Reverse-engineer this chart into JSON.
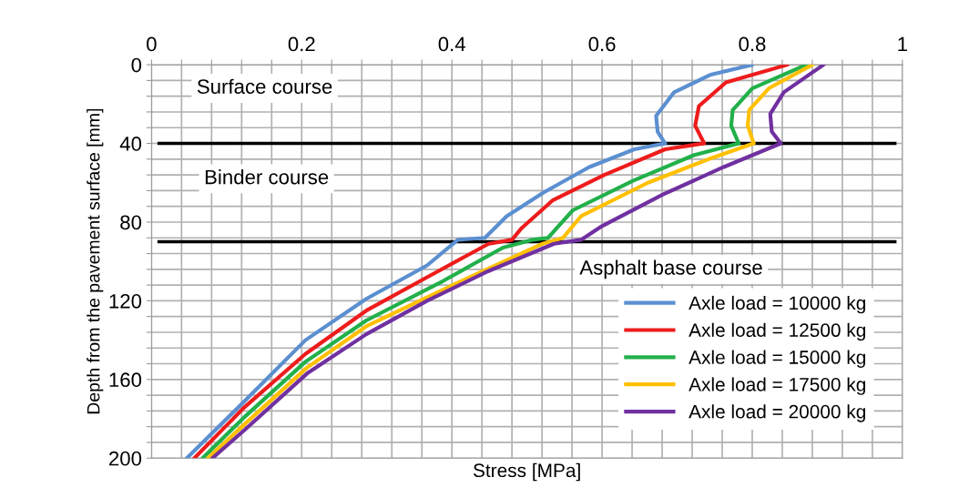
{
  "chart_data": {
    "type": "line",
    "xlabel": "Stress [MPa]",
    "ylabel": "Depth from the pavement surface [mm]",
    "xlim": [
      0,
      1
    ],
    "ylim": [
      200,
      0
    ],
    "xticks": [
      0,
      {
        "value": 0.04,
        "label": null
      },
      {
        "value": 0.08,
        "label": null
      },
      {
        "value": 0.12,
        "label": null
      },
      {
        "value": 0.16,
        "label": null
      },
      0.2,
      {
        "value": 0.24,
        "label": null
      },
      {
        "value": 0.28,
        "label": null
      },
      {
        "value": 0.32,
        "label": null
      },
      {
        "value": 0.36,
        "label": null
      },
      0.4,
      {
        "value": 0.44,
        "label": null
      },
      {
        "value": 0.48,
        "label": null
      },
      {
        "value": 0.52,
        "label": null
      },
      {
        "value": 0.56,
        "label": null
      },
      0.6,
      {
        "value": 0.64,
        "label": null
      },
      {
        "value": 0.68,
        "label": null
      },
      {
        "value": 0.72,
        "label": null
      },
      {
        "value": 0.76,
        "label": null
      },
      0.8,
      {
        "value": 0.84,
        "label": null
      },
      {
        "value": 0.88,
        "label": null
      },
      {
        "value": 0.92,
        "label": null
      },
      {
        "value": 0.96,
        "label": null
      },
      1
    ],
    "yticks": [
      0,
      {
        "value": 8,
        "label": null
      },
      {
        "value": 16,
        "label": null
      },
      {
        "value": 24,
        "label": null
      },
      {
        "value": 32,
        "label": null
      },
      40,
      {
        "value": 48,
        "label": null
      },
      {
        "value": 56,
        "label": null
      },
      {
        "value": 64,
        "label": null
      },
      {
        "value": 72,
        "label": null
      },
      80,
      {
        "value": 88,
        "label": null
      },
      {
        "value": 96,
        "label": null
      },
      {
        "value": 104,
        "label": null
      },
      {
        "value": 112,
        "label": null
      },
      120,
      {
        "value": 128,
        "label": null
      },
      {
        "value": 136,
        "label": null
      },
      {
        "value": 144,
        "label": null
      },
      {
        "value": 152,
        "label": null
      },
      160,
      {
        "value": 168,
        "label": null
      },
      {
        "value": 176,
        "label": null
      },
      {
        "value": 184,
        "label": null
      },
      {
        "value": 192,
        "label": null
      },
      200
    ],
    "grid": true,
    "legend": "bottom right",
    "marker": "none",
    "line_style": "solid",
    "series": [
      {
        "name": "Axle load = 10000 kg",
        "color": "#5b8fd0",
        "x": [
          0.8,
          0.745,
          0.696,
          0.672,
          0.674,
          0.684,
          0.643,
          0.583,
          0.522,
          0.473,
          0.444,
          0.408,
          0.367,
          0.286,
          0.205,
          0.124,
          0.047
        ],
        "values": [
          0,
          5,
          14,
          26,
          34,
          40,
          43,
          52,
          65,
          77,
          88,
          89,
          102,
          119,
          140,
          171,
          200
        ]
      },
      {
        "name": "Axle load = 12500 kg",
        "color": "#ee1c1c",
        "x": [
          0.847,
          0.765,
          0.729,
          0.724,
          0.736,
          0.684,
          0.603,
          0.534,
          0.493,
          0.48,
          0.449,
          0.367,
          0.286,
          0.205,
          0.124,
          0.057
        ],
        "values": [
          0,
          9,
          21,
          31,
          40,
          43,
          56,
          69,
          83,
          89,
          91,
          108,
          125,
          147,
          174,
          200
        ]
      },
      {
        "name": "Axle load = 15000 kg",
        "color": "#22b04a",
        "x": [
          0.872,
          0.8,
          0.774,
          0.772,
          0.782,
          0.722,
          0.641,
          0.561,
          0.528,
          0.507,
          0.468,
          0.388,
          0.286,
          0.205,
          0.124,
          0.068
        ],
        "values": [
          0,
          12,
          23,
          31,
          40,
          46,
          59,
          74,
          88,
          89,
          93,
          110,
          130,
          151,
          179,
          200
        ]
      },
      {
        "name": "Axle load = 17500 kg",
        "color": "#ffc000",
        "x": [
          0.88,
          0.822,
          0.796,
          0.794,
          0.802,
          0.742,
          0.661,
          0.572,
          0.548,
          0.521,
          0.407,
          0.286,
          0.207,
          0.126,
          0.075
        ],
        "values": [
          0,
          12,
          23,
          31,
          40,
          48,
          60,
          77,
          88,
          91,
          111,
          133,
          154,
          182,
          200
        ]
      },
      {
        "name": "Axle load = 20000 kg",
        "color": "#7030a0",
        "x": [
          0.895,
          0.842,
          0.824,
          0.826,
          0.838,
          0.762,
          0.681,
          0.6,
          0.572,
          0.536,
          0.448,
          0.367,
          0.286,
          0.207,
          0.126,
          0.081
        ],
        "values": [
          0,
          14,
          25,
          34,
          40,
          52,
          66,
          82,
          89,
          91,
          105,
          120,
          137,
          157,
          185,
          200
        ]
      }
    ],
    "ref_lines": [
      {
        "axis": "y",
        "value": 40,
        "color": "#000000"
      },
      {
        "axis": "y",
        "value": 90,
        "color": "#000000"
      }
    ],
    "annotations": [
      "Surface course",
      "Binder course",
      "Asphalt base course"
    ]
  }
}
